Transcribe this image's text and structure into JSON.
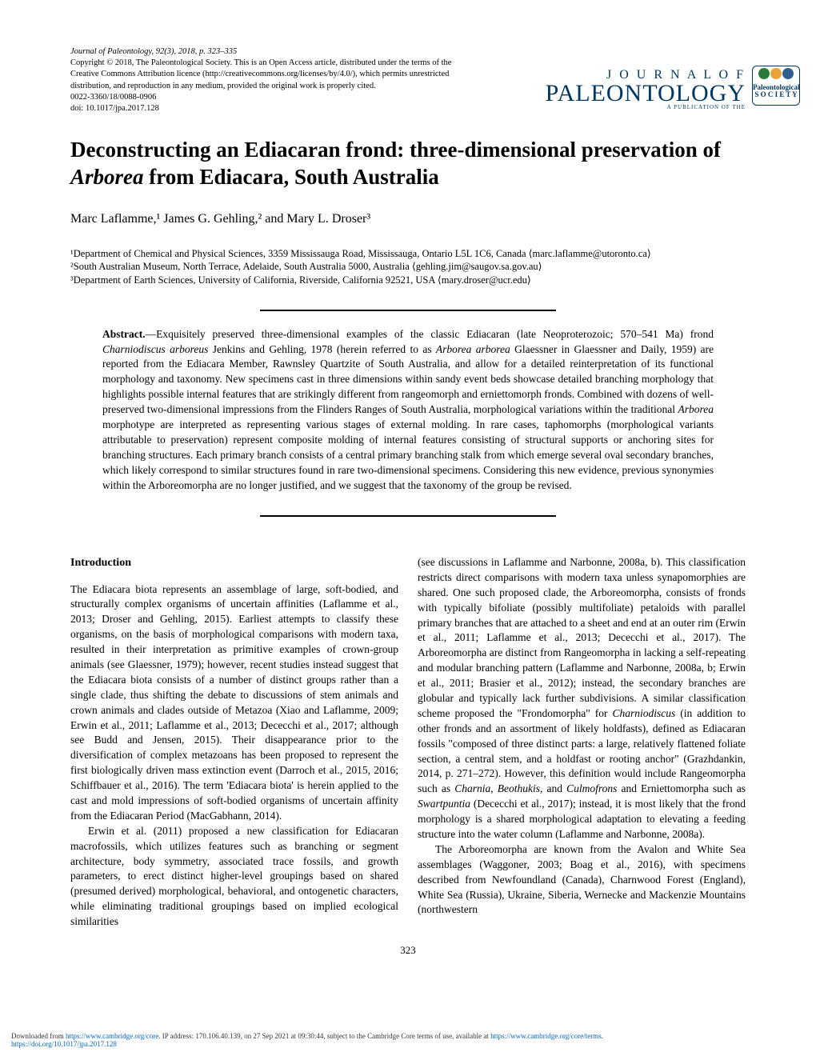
{
  "meta": {
    "journal_citation": "Journal of Paleontology, 92(3), 2018, p. 323–335",
    "copyright": "Copyright © 2018, The Paleontological Society. This is an Open Access article, distributed under the terms of the Creative Commons Attribution licence (http://creativecommons.org/licenses/by/4.0/), which permits unrestricted distribution, and reproduction in any medium, provided the original work is properly cited.",
    "issn": "0022-3360/18/0088-0906",
    "doi": "doi: 10.1017/jpa.2017.128"
  },
  "logo": {
    "journal_of": "J O U R N A L   O F",
    "paleontology": "PALEONTOLOGY",
    "publication_of": "A PUBLICATION OF THE",
    "society_text1": "Paleontological",
    "society_text2": "S O C I E T Y"
  },
  "title": {
    "line1_pre": "Deconstructing an Ediacaran frond: three-dimensional preservation of",
    "line2_italic": "Arborea",
    "line2_post": " from Ediacara, South Australia"
  },
  "authors": "Marc Laflamme,¹ James G. Gehling,² and Mary L. Droser³",
  "affiliations": {
    "a1": "¹Department of Chemical and Physical Sciences, 3359 Mississauga Road, Mississauga, Ontario L5L 1C6, Canada ⟨marc.laflamme@utoronto.ca⟩",
    "a2": "²South Australian Museum, North Terrace, Adelaide, South Australia 5000, Australia ⟨gehling.jim@saugov.sa.gov.au⟩",
    "a3": "³Department of Earth Sciences, University of California, Riverside, California 92521, USA ⟨mary.droser@ucr.edu⟩"
  },
  "abstract": {
    "label": "Abstract.",
    "text_pre": "—Exquisitely preserved three-dimensional examples of the classic Ediacaran (late Neoproterozoic; 570–541 Ma) frond ",
    "italic1": "Charniodiscus arboreus",
    "text_mid1": " Jenkins and Gehling, 1978 (herein referred to as ",
    "italic2": "Arborea arborea",
    "text_mid2": " Glaessner in Glaessner and Daily, 1959) are reported from the Ediacara Member, Rawnsley Quartzite of South Australia, and allow for a detailed reinterpretation of its functional morphology and taxonomy. New specimens cast in three dimensions within sandy event beds showcase detailed branching morphology that highlights possible internal features that are strikingly different from rangeomorph and erniettomorph fronds. Combined with dozens of well-preserved two-dimensional impressions from the Flinders Ranges of South Australia, morphological variations within the traditional ",
    "italic3": "Arborea",
    "text_mid3": " morphotype are interpreted as representing various stages of external molding. In rare cases, taphomorphs (morphological variants attributable to preservation) represent composite molding of internal features consisting of structural supports or anchoring sites for branching structures. Each primary branch consists of a central primary branching stalk from which emerge several oval secondary branches, which likely correspond to similar structures found in rare two-dimensional specimens. Considering this new evidence, previous synonymies within the Arboreomorpha are no longer justified, and we suggest that the taxonomy of the group be revised."
  },
  "introduction": {
    "heading": "Introduction",
    "p1": "The Ediacara biota represents an assemblage of large, soft-bodied, and structurally complex organisms of uncertain affinities (Laflamme et al., 2013; Droser and Gehling, 2015). Earliest attempts to classify these organisms, on the basis of morphological comparisons with modern taxa, resulted in their interpretation as primitive examples of crown-group animals (see Glaessner, 1979); however, recent studies instead suggest that the Ediacara biota consists of a number of distinct groups rather than a single clade, thus shifting the debate to discussions of stem animals and crown animals and clades outside of Metazoa (Xiao and Laflamme, 2009; Erwin et al., 2011; Laflamme et al., 2013; Dececchi et al., 2017; although see Budd and Jensen, 2015). Their disappearance prior to the diversification of complex metazoans has been proposed to represent the first biologically driven mass extinction event (Darroch et al., 2015, 2016; Schiffbauer et al., 2016). The term 'Ediacara biota' is herein applied to the cast and mold impressions of soft-bodied organisms of uncertain affinity from the Ediacaran Period (MacGabhann, 2014).",
    "p2": "Erwin et al. (2011) proposed a new classification for Ediacaran macrofossils, which utilizes features such as branching or segment architecture, body symmetry, associated trace fossils, and growth parameters, to erect distinct higher-level groupings based on shared (presumed derived) morphological, behavioral, and ontogenetic characters, while eliminating traditional groupings based on implied ecological similarities"
  },
  "col2": {
    "p1_pre": "(see discussions in Laflamme and Narbonne, 2008a, b). This classification restricts direct comparisons with modern taxa unless synapomorphies are shared. One such proposed clade, the Arboreomorpha, consists of fronds with typically bifoliate (possibly multifoliate) petaloids with parallel primary branches that are attached to a sheet and end at an outer rim (Erwin et al., 2011; Laflamme et al., 2013; Dececchi et al., 2017). The Arboreomorpha are distinct from Rangeomorpha in lacking a self-repeating and modular branching pattern (Laflamme and Narbonne, 2008a, b; Erwin et al., 2011; Brasier et al., 2012); instead, the secondary branches are globular and typically lack further subdivisions. A similar classification scheme proposed the \"Frondomorpha\" for ",
    "italic1": "Charniodiscus",
    "p1_mid1": " (in addition to other fronds and an assortment of likely holdfasts), defined as Ediacaran fossils \"composed of three distinct parts: a large, relatively flattened foliate section, a central stem, and a holdfast or rooting anchor\" (Grazhdankin, 2014, p. 271–272). However, this definition would include Rangeomorpha such as ",
    "italic2": "Charnia",
    "p1_mid2": ", ",
    "italic3": "Beothukis",
    "p1_mid3": ", and ",
    "italic4": "Culmofrons",
    "p1_mid4": " and Erniettomorpha such as ",
    "italic5": "Swartpuntia",
    "p1_post": " (Dececchi et al., 2017); instead, it is most likely that the frond morphology is a shared morphological adaptation to elevating a feeding structure into the water column (Laflamme and Narbonne, 2008a).",
    "p2": "The Arboreomorpha are known from the Avalon and White Sea assemblages (Waggoner, 2003; Boag et al., 2016), with specimens described from Newfoundland (Canada), Charnwood Forest (England), White Sea (Russia), Ukraine, Siberia, Wernecke and Mackenzie Mountains (northwestern"
  },
  "page_number": "323",
  "footer": {
    "text_pre": "Downloaded from ",
    "link1": "https://www.cambridge.org/core",
    "text_mid1": ". IP address: 170.106.40.139, on 27 Sep 2021 at 09:30:44, subject to the Cambridge Core terms of use, available at ",
    "link2": "https://www.cambridge.org/core/terms",
    "text_mid2": ". ",
    "link3": "https://doi.org/10.1017/jpa.2017.128"
  }
}
